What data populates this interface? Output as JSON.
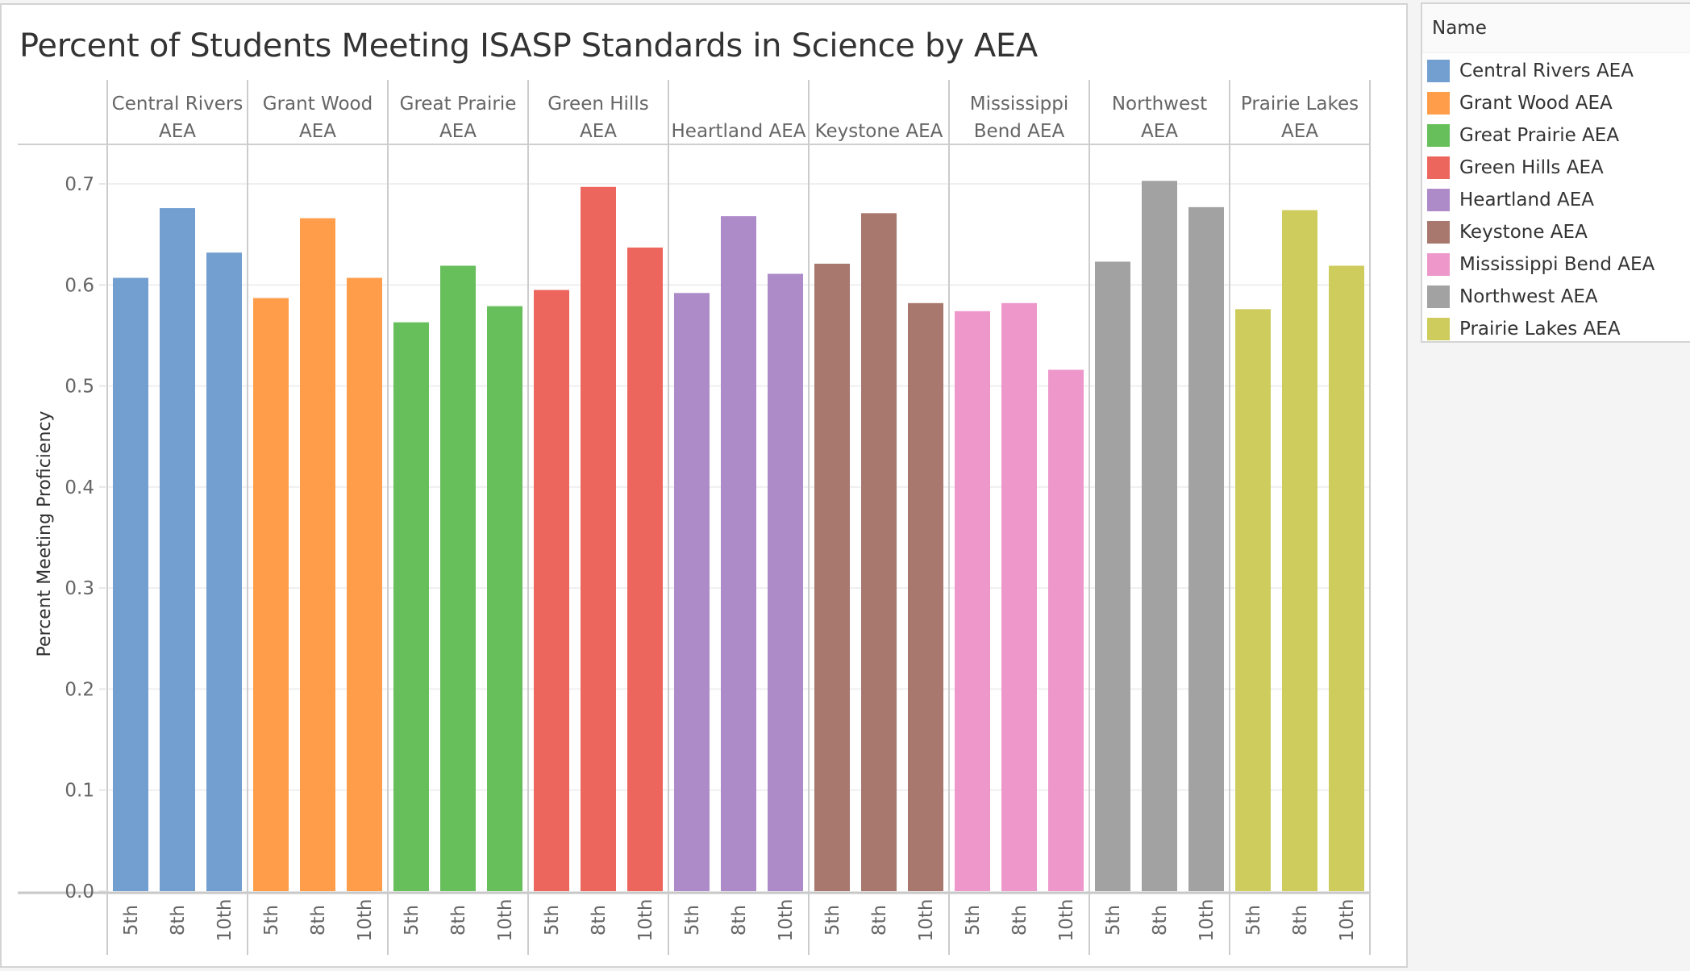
{
  "chart_data": {
    "type": "bar",
    "title": "Percent of Students Meeting ISASP Standards in Science by AEA",
    "ylabel": "Percent Meeting Proficiency",
    "xlabel": "",
    "ylim": [
      0,
      0.75
    ],
    "yticks": [
      "0.0",
      "0.1",
      "0.2",
      "0.3",
      "0.4",
      "0.5",
      "0.6",
      "0.7"
    ],
    "ytick_values": [
      0,
      0.1,
      0.2,
      0.3,
      0.4,
      0.5,
      0.6,
      0.7
    ],
    "grid": true,
    "legend_position": "right",
    "legend_title": "Name",
    "grades": [
      "5th",
      "8th",
      "10th"
    ],
    "groups": [
      {
        "name": "Central Rivers AEA",
        "header": [
          "Central Rivers",
          "AEA"
        ],
        "color": "#729fcf",
        "values": [
          0.607,
          0.676,
          0.632
        ]
      },
      {
        "name": "Grant Wood AEA",
        "header": [
          "Grant Wood",
          "AEA"
        ],
        "color": "#ff9d4a",
        "values": [
          0.587,
          0.666,
          0.607
        ]
      },
      {
        "name": "Great Prairie AEA",
        "header": [
          "Great Prairie",
          "AEA"
        ],
        "color": "#67bf5c",
        "values": [
          0.563,
          0.619,
          0.579
        ]
      },
      {
        "name": "Green Hills AEA",
        "header": [
          "Green Hills",
          "AEA"
        ],
        "color": "#ed665d",
        "values": [
          0.595,
          0.697,
          0.637
        ]
      },
      {
        "name": "Heartland AEA",
        "header": [
          "",
          "Heartland AEA"
        ],
        "color": "#ad8bc9",
        "values": [
          0.592,
          0.668,
          0.611
        ]
      },
      {
        "name": "Keystone AEA",
        "header": [
          "",
          "Keystone AEA"
        ],
        "color": "#a8786e",
        "values": [
          0.621,
          0.671,
          0.582
        ]
      },
      {
        "name": "Mississippi Bend AEA",
        "header": [
          "Mississippi",
          "Bend AEA"
        ],
        "color": "#ed97ca",
        "values": [
          0.574,
          0.582,
          0.516
        ]
      },
      {
        "name": "Northwest AEA",
        "header": [
          "Northwest",
          "AEA"
        ],
        "color": "#a2a2a2",
        "values": [
          0.623,
          0.703,
          0.677
        ]
      },
      {
        "name": "Prairie Lakes AEA",
        "header": [
          "Prairie Lakes",
          "AEA"
        ],
        "color": "#cdcc5d",
        "values": [
          0.576,
          0.674,
          0.619
        ]
      }
    ]
  }
}
